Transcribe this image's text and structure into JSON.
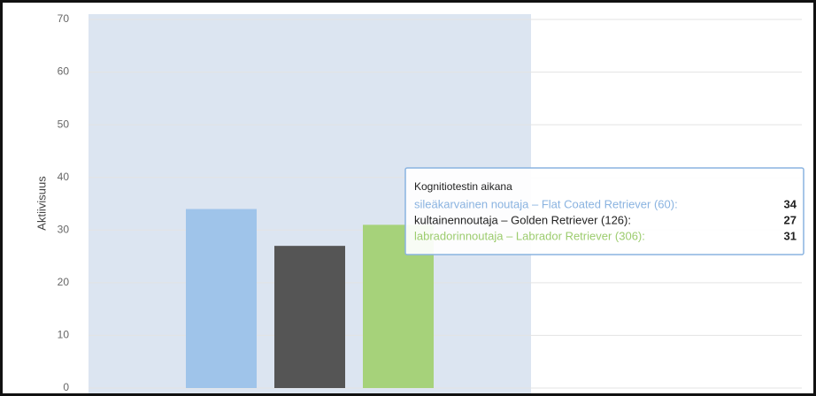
{
  "chart_data": {
    "type": "bar",
    "y_label": "Aktiivisuus",
    "categories": [
      "Kognitiotestin aikana",
      null
    ],
    "series": [
      {
        "name": "sileäkarvainen noutaja – Flat Coated Retriever (60):",
        "color": "#9fc4ea",
        "values": [
          34,
          null
        ]
      },
      {
        "name": "kultainennoutaja – Golden Retriever (126):",
        "color": "#555555",
        "values": [
          27,
          null
        ]
      },
      {
        "name": "labradorinnoutaja – Labrador Retriever (306):",
        "color": "#a6d27a",
        "values": [
          31,
          null
        ]
      }
    ],
    "ylim": [
      0,
      70
    ],
    "yticks": [
      0,
      10,
      20,
      30,
      40,
      50,
      60,
      70
    ],
    "grid": true
  }
}
